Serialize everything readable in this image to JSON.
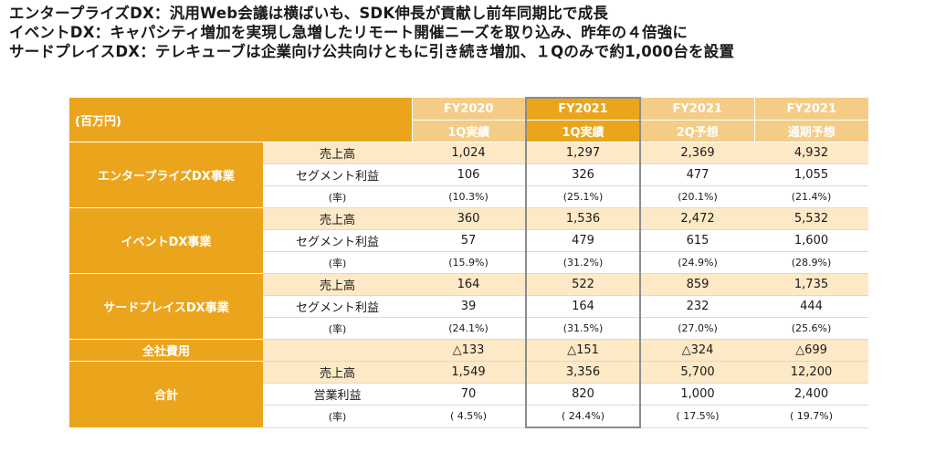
{
  "headlines": [
    "エンタープライズDX：汎用Web会議は横ばいも、SDK伸長が貢献し前年同期比で成長",
    "イベントDX：キャパシティ増加を実現し急増したリモート開催ニーズを取り込み、昨年の４倍強に",
    "サードプレイスDX：テレキューブは企業向け公共向けともに引き続き増加、１Qのみで約1,000台を設置"
  ],
  "table": {
    "unit_label": "(百万円)",
    "columns": [
      {
        "year": "FY2020",
        "period": "1Q実績",
        "highlight": false
      },
      {
        "year": "FY2021",
        "period": "1Q実績",
        "highlight": true
      },
      {
        "year": "FY2021",
        "period": "2Q予想",
        "highlight": false
      },
      {
        "year": "FY2021",
        "period": "通期予想",
        "highlight": false
      }
    ],
    "segments": [
      {
        "name": "エンタープライズDX事業",
        "rows": [
          {
            "metric": "売上高",
            "values": [
              "1,024",
              "1,297",
              "2,369",
              "4,932"
            ]
          },
          {
            "metric": "セグメント利益",
            "values": [
              "106",
              "326",
              "477",
              "1,055"
            ]
          },
          {
            "metric": "(率)",
            "values": [
              "(10.3%)",
              "(25.1%)",
              "(20.1%)",
              "(21.4%)"
            ]
          }
        ]
      },
      {
        "name": "イベントDX事業",
        "rows": [
          {
            "metric": "売上高",
            "values": [
              "360",
              "1,536",
              "2,472",
              "5,532"
            ]
          },
          {
            "metric": "セグメント利益",
            "values": [
              "57",
              "479",
              "615",
              "1,600"
            ]
          },
          {
            "metric": "(率)",
            "values": [
              "(15.9%)",
              "(31.2%)",
              "(24.9%)",
              "(28.9%)"
            ]
          }
        ]
      },
      {
        "name": "サードプレイスDX事業",
        "rows": [
          {
            "metric": "売上高",
            "values": [
              "164",
              "522",
              "859",
              "1,735"
            ]
          },
          {
            "metric": "セグメント利益",
            "values": [
              "39",
              "164",
              "232",
              "444"
            ]
          },
          {
            "metric": "(率)",
            "values": [
              "(24.1%)",
              "(31.5%)",
              "(27.0%)",
              "(25.6%)"
            ]
          }
        ]
      },
      {
        "name": "全社費用",
        "rows": [
          {
            "metric": "",
            "values": [
              "△133",
              "△151",
              "△324",
              "△699"
            ]
          }
        ]
      },
      {
        "name": "合計",
        "rows": [
          {
            "metric": "売上高",
            "values": [
              "1,549",
              "3,356",
              "5,700",
              "12,200"
            ]
          },
          {
            "metric": "営業利益",
            "values": [
              "70",
              "820",
              "1,000",
              "2,400"
            ]
          },
          {
            "metric": "(率)",
            "values": [
              "( 4.5%)",
              "( 24.4%)",
              "( 17.5%)",
              "( 19.7%)"
            ]
          }
        ]
      }
    ]
  },
  "colors": {
    "accent": "#eba51d",
    "header_light": "#f5cc86",
    "row_tint": "#fde9c6",
    "highlight_border": "#8c8c8c"
  }
}
